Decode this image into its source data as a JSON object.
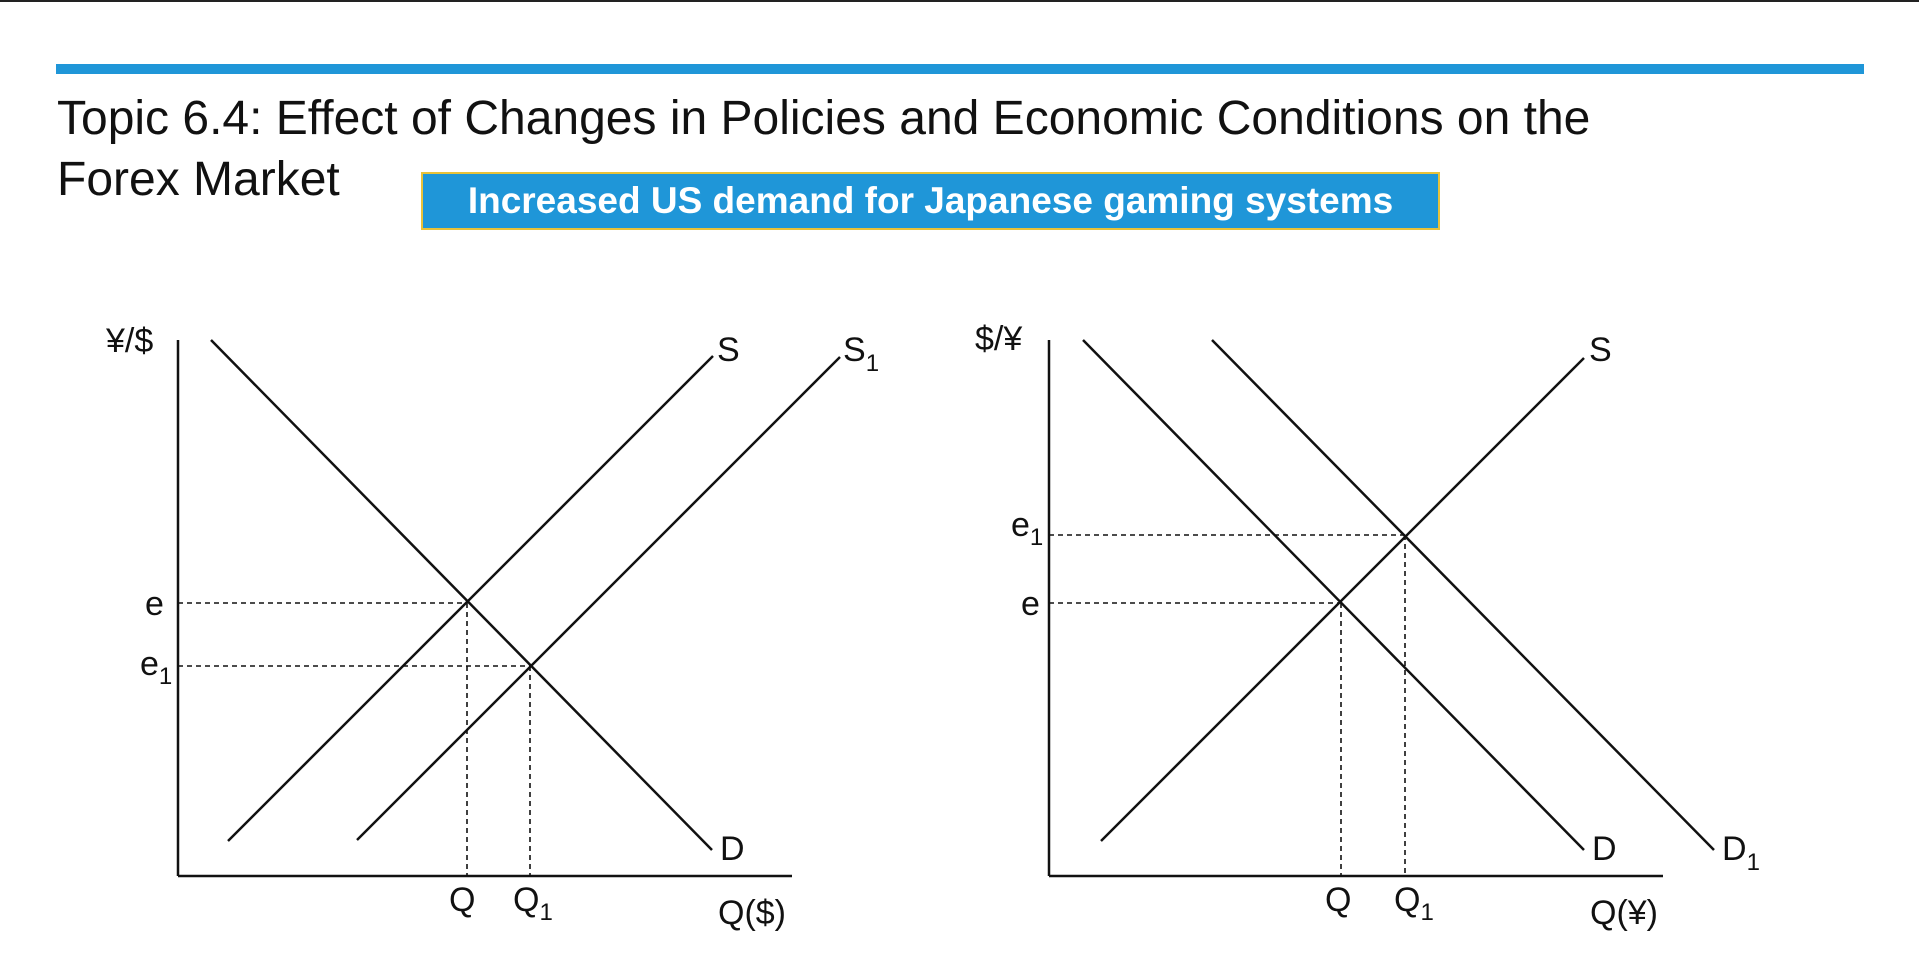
{
  "slide": {
    "title_line1": "Topic 6.4: Effect of Changes in Policies and Economic Conditions on the",
    "title_line2": "Forex Market",
    "banner": "Increased US demand for Japanese gaming systems",
    "accent_color": "#1f96d8",
    "banner_border_color": "#e8c23a"
  },
  "left_graph": {
    "y_axis_label": "¥/$",
    "x_axis_label": "Q($)",
    "curves": {
      "S": {
        "label": "S",
        "sub": ""
      },
      "S1": {
        "label": "S",
        "sub": "1"
      },
      "D": {
        "label": "D",
        "sub": ""
      }
    },
    "y_ticks": {
      "e": {
        "label": "e",
        "sub": ""
      },
      "e1": {
        "label": "e",
        "sub": "1"
      }
    },
    "x_ticks": {
      "Q": {
        "label": "Q",
        "sub": ""
      },
      "Q1": {
        "label": "Q",
        "sub": "1"
      }
    }
  },
  "right_graph": {
    "y_axis_label": "$/¥",
    "x_axis_label": "Q(¥)",
    "curves": {
      "S": {
        "label": "S",
        "sub": ""
      },
      "D": {
        "label": "D",
        "sub": ""
      },
      "D1": {
        "label": "D",
        "sub": "1"
      }
    },
    "y_ticks": {
      "e1": {
        "label": "e",
        "sub": "1"
      },
      "e": {
        "label": "e",
        "sub": ""
      }
    },
    "x_ticks": {
      "Q": {
        "label": "Q",
        "sub": ""
      },
      "Q1": {
        "label": "Q",
        "sub": "1"
      }
    }
  }
}
